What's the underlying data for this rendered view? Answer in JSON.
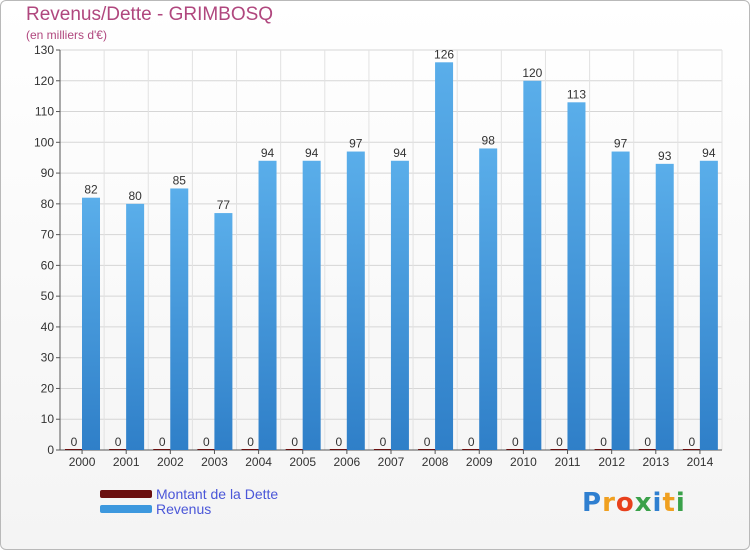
{
  "header": {
    "title": "Revenus/Dette - GRIMBOSQ",
    "subtitle": "(en milliers d'€)"
  },
  "chart_data": {
    "type": "bar",
    "title": "Revenus/Dette - GRIMBOSQ",
    "subtitle": "(en milliers d'€)",
    "categories": [
      "2000",
      "2001",
      "2002",
      "2003",
      "2004",
      "2005",
      "2006",
      "2007",
      "2008",
      "2009",
      "2010",
      "2011",
      "2012",
      "2013",
      "2014"
    ],
    "series": [
      {
        "name": "Montant de la Dette",
        "values": [
          0,
          0,
          0,
          0,
          0,
          0,
          0,
          0,
          0,
          0,
          0,
          0,
          0,
          0,
          0
        ],
        "color": "#6b0f0f"
      },
      {
        "name": "Revenus",
        "values": [
          82,
          80,
          85,
          77,
          94,
          94,
          97,
          94,
          126,
          98,
          120,
          113,
          97,
          93,
          94
        ],
        "color": "#3d98de"
      }
    ],
    "ylim": [
      0,
      130
    ],
    "yticks": [
      0,
      10,
      20,
      30,
      40,
      50,
      60,
      70,
      80,
      90,
      100,
      110,
      120,
      130
    ],
    "grid": true,
    "legend_position": "bottom-left"
  },
  "legend": {
    "items": [
      {
        "label": "Montant de la Dette",
        "color": "#6b0f0f"
      },
      {
        "label": "Revenus",
        "color": "#3d98de"
      }
    ]
  },
  "logo": {
    "text": "Proxiti",
    "letters": [
      "P",
      "r",
      "o",
      "x",
      "i",
      "t",
      "i"
    ],
    "colors": [
      "#2f7fd0",
      "#f0a020",
      "#e8401c",
      "#3aa14a",
      "#2f7fd0",
      "#f0a020",
      "#3aa14a"
    ]
  }
}
